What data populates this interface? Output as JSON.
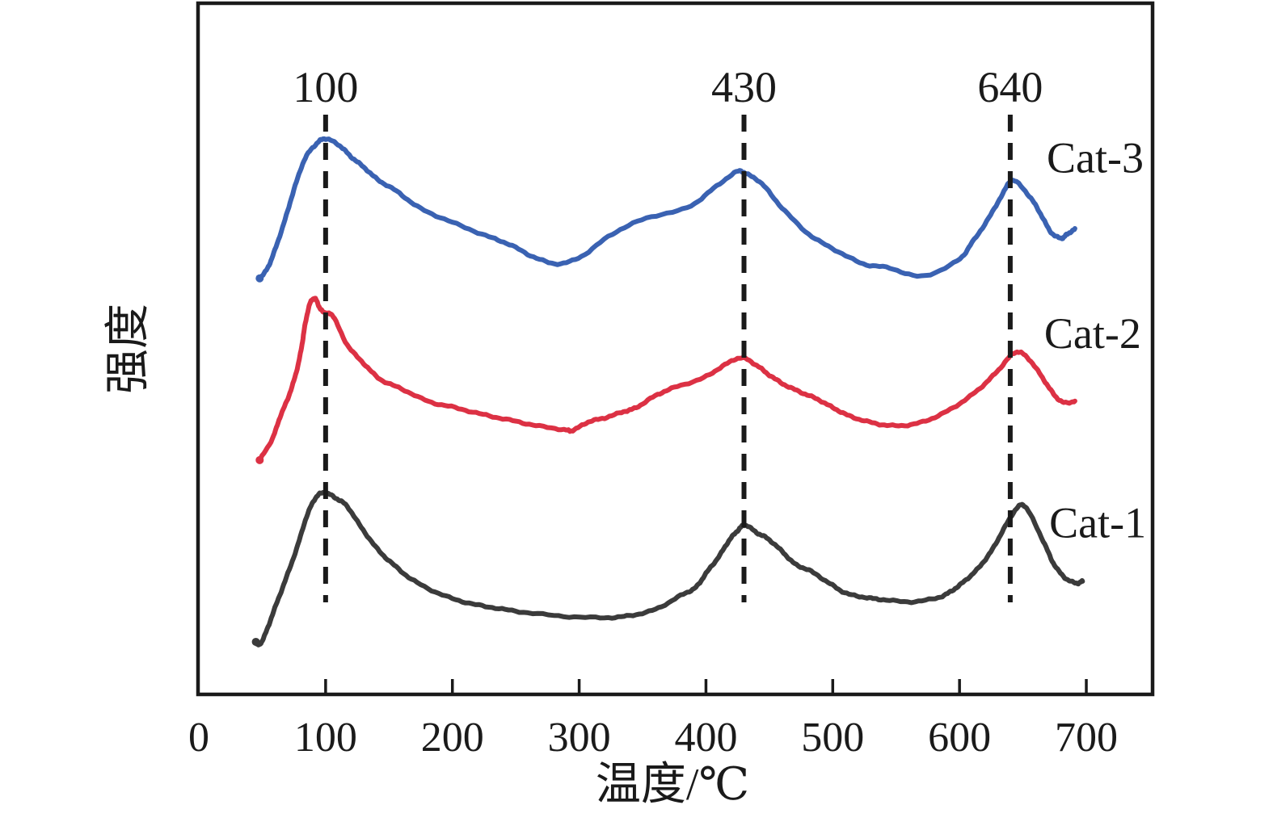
{
  "figure": {
    "background": "#ffffff",
    "axis_color": "#1a1a1a"
  },
  "chart_data": {
    "type": "line",
    "title": "",
    "xlabel": "温度/℃",
    "ylabel": "强度",
    "x_axis": {
      "min": 0,
      "max": 750,
      "ticks": [
        0,
        100,
        200,
        300,
        400,
        500,
        600,
        700
      ]
    },
    "y_axis": {
      "min": 0,
      "max": 100,
      "units": "a.u.",
      "ticks": []
    },
    "grid": false,
    "legend_position": "right-inline",
    "annotations": [
      {
        "label": "100",
        "x": 100,
        "style": "dashed-vertical"
      },
      {
        "label": "430",
        "x": 430,
        "style": "dashed-vertical"
      },
      {
        "label": "640",
        "x": 640,
        "style": "dashed-vertical"
      }
    ],
    "series": [
      {
        "name": "Cat-3",
        "color": "#3a62b2",
        "label_anchor": {
          "x": 707,
          "y": 77.6
        },
        "points": [
          [
            48,
            60.2
          ],
          [
            54,
            61.6
          ],
          [
            60,
            64.3
          ],
          [
            68,
            68.7
          ],
          [
            76,
            73.6
          ],
          [
            84,
            77.6
          ],
          [
            93,
            79.7
          ],
          [
            100,
            80.4
          ],
          [
            111,
            79.4
          ],
          [
            120,
            77.8
          ],
          [
            130,
            76.3
          ],
          [
            141,
            74.5
          ],
          [
            156,
            72.8
          ],
          [
            175,
            70.3
          ],
          [
            200,
            68.3
          ],
          [
            226,
            66.4
          ],
          [
            245,
            65.1
          ],
          [
            264,
            63.3
          ],
          [
            283,
            62.3
          ],
          [
            302,
            63.4
          ],
          [
            326,
            66.6
          ],
          [
            353,
            68.9
          ],
          [
            385,
            70.4
          ],
          [
            406,
            73.2
          ],
          [
            424,
            75.6
          ],
          [
            432,
            75.3
          ],
          [
            444,
            73.9
          ],
          [
            460,
            70.4
          ],
          [
            481,
            66.6
          ],
          [
            502,
            64.3
          ],
          [
            524,
            62.3
          ],
          [
            545,
            61.7
          ],
          [
            570,
            60.5
          ],
          [
            598,
            62.7
          ],
          [
            610,
            65.4
          ],
          [
            623,
            68.9
          ],
          [
            634,
            72.4
          ],
          [
            642,
            74.4
          ],
          [
            655,
            72.1
          ],
          [
            664,
            69.5
          ],
          [
            672,
            66.9
          ],
          [
            680,
            66.0
          ],
          [
            685,
            66.6
          ],
          [
            691,
            67.3
          ]
        ]
      },
      {
        "name": "Cat-2",
        "color": "#dc3144",
        "label_anchor": {
          "x": 705,
          "y": 52.2
        },
        "points": [
          [
            48,
            33.9
          ],
          [
            58,
            37.0
          ],
          [
            64,
            40.1
          ],
          [
            71,
            43.2
          ],
          [
            77,
            46.7
          ],
          [
            81,
            50.2
          ],
          [
            84,
            53.7
          ],
          [
            88,
            56.7
          ],
          [
            92,
            57.2
          ],
          [
            96,
            55.7
          ],
          [
            101,
            55.1
          ],
          [
            106,
            54.7
          ],
          [
            117,
            50.6
          ],
          [
            130,
            47.9
          ],
          [
            143,
            45.6
          ],
          [
            160,
            44.2
          ],
          [
            181,
            42.4
          ],
          [
            202,
            41.5
          ],
          [
            224,
            40.5
          ],
          [
            245,
            39.7
          ],
          [
            266,
            38.9
          ],
          [
            288,
            38.3
          ],
          [
            295,
            38.2
          ],
          [
            307,
            39.4
          ],
          [
            320,
            40.0
          ],
          [
            335,
            40.9
          ],
          [
            345,
            41.5
          ],
          [
            360,
            43.2
          ],
          [
            375,
            44.4
          ],
          [
            398,
            45.8
          ],
          [
            415,
            47.7
          ],
          [
            428,
            48.7
          ],
          [
            440,
            47.6
          ],
          [
            450,
            46.2
          ],
          [
            462,
            44.8
          ],
          [
            475,
            43.7
          ],
          [
            488,
            42.7
          ],
          [
            500,
            41.5
          ],
          [
            513,
            40.3
          ],
          [
            529,
            39.4
          ],
          [
            545,
            38.9
          ],
          [
            564,
            39.1
          ],
          [
            583,
            40.3
          ],
          [
            602,
            42.3
          ],
          [
            618,
            44.6
          ],
          [
            631,
            47.0
          ],
          [
            643,
            49.4
          ],
          [
            652,
            49.0
          ],
          [
            663,
            46.5
          ],
          [
            672,
            44.0
          ],
          [
            681,
            42.3
          ],
          [
            691,
            42.4
          ]
        ]
      },
      {
        "name": "Cat-1",
        "color": "#3b3b3b",
        "label_anchor": {
          "x": 709,
          "y": 24.8
        },
        "points": [
          [
            45,
            7.6
          ],
          [
            48,
            7.2
          ],
          [
            53,
            9.0
          ],
          [
            60,
            12.5
          ],
          [
            68,
            16.4
          ],
          [
            77,
            21.0
          ],
          [
            85,
            25.7
          ],
          [
            92,
            28.4
          ],
          [
            99,
            29.2
          ],
          [
            108,
            28.4
          ],
          [
            117,
            27.2
          ],
          [
            128,
            24.2
          ],
          [
            141,
            21.0
          ],
          [
            154,
            18.7
          ],
          [
            170,
            16.4
          ],
          [
            192,
            14.4
          ],
          [
            213,
            13.2
          ],
          [
            234,
            12.5
          ],
          [
            256,
            11.9
          ],
          [
            288,
            11.3
          ],
          [
            320,
            11.1
          ],
          [
            340,
            11.4
          ],
          [
            360,
            12.3
          ],
          [
            380,
            14.3
          ],
          [
            392,
            15.5
          ],
          [
            400,
            17.5
          ],
          [
            410,
            19.9
          ],
          [
            418,
            22.2
          ],
          [
            425,
            23.7
          ],
          [
            431,
            24.5
          ],
          [
            440,
            23.4
          ],
          [
            449,
            22.5
          ],
          [
            460,
            20.7
          ],
          [
            470,
            18.9
          ],
          [
            483,
            17.8
          ],
          [
            498,
            16.0
          ],
          [
            511,
            14.6
          ],
          [
            527,
            14.0
          ],
          [
            540,
            13.7
          ],
          [
            562,
            13.4
          ],
          [
            583,
            14.0
          ],
          [
            594,
            15.0
          ],
          [
            604,
            16.4
          ],
          [
            615,
            18.3
          ],
          [
            626,
            21.0
          ],
          [
            636,
            24.3
          ],
          [
            646,
            27.1
          ],
          [
            653,
            26.9
          ],
          [
            666,
            22.2
          ],
          [
            674,
            19.0
          ],
          [
            683,
            16.9
          ],
          [
            692,
            16.1
          ],
          [
            697,
            16.4
          ]
        ]
      }
    ]
  }
}
